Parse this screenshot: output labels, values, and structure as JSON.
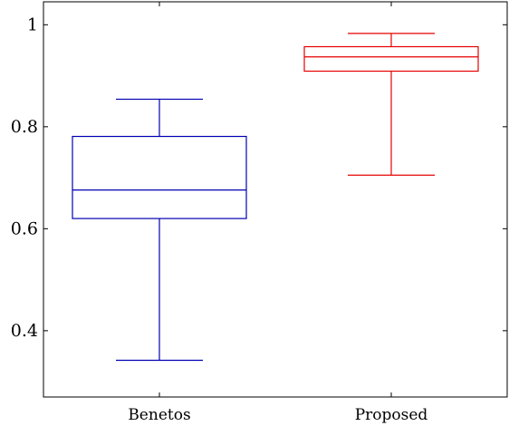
{
  "chart_data": {
    "type": "boxplot",
    "title": "",
    "xlabel": "",
    "ylabel": "",
    "ylim": [
      0.27,
      1.045
    ],
    "yticks": [
      0.4,
      0.6,
      0.8,
      1.0
    ],
    "ytick_labels": [
      "0.4",
      "0.6",
      "0.8",
      "1"
    ],
    "categories": [
      "Benetos",
      "Proposed"
    ],
    "grid": false,
    "legend": "none",
    "series": [
      {
        "category": "Benetos",
        "color": "#0000b3",
        "whisker_low": 0.342,
        "q1": 0.62,
        "median": 0.676,
        "q3": 0.781,
        "whisker_high": 0.854
      },
      {
        "category": "Proposed",
        "color": "#e60000",
        "whisker_low": 0.705,
        "q1": 0.909,
        "median": 0.937,
        "q3": 0.957,
        "whisker_high": 0.983
      }
    ]
  }
}
